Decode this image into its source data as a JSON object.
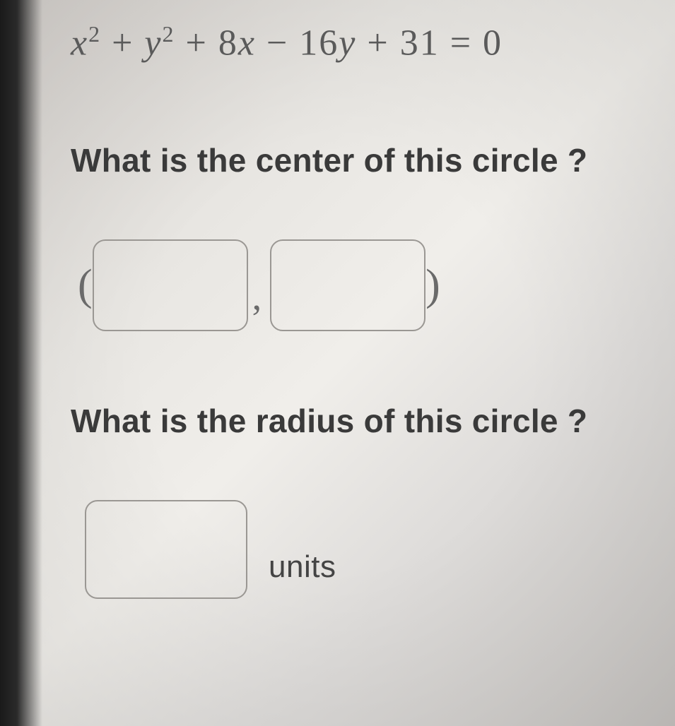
{
  "equation": {
    "latex_display": "x² + y² + 8x − 16y + 31 = 0",
    "terms": {
      "x_sq": "x",
      "y_sq": "y",
      "x_coef": "8",
      "y_coef": "16",
      "const": "31",
      "rhs": "0"
    }
  },
  "questions": {
    "center": "What is the center of this circle ?",
    "radius": "What is the radius of this circle ?"
  },
  "inputs": {
    "center_x": "",
    "center_y": "",
    "radius": "",
    "units_label": "units"
  },
  "style": {
    "text_color": "#3a3a3a",
    "equation_color": "#5a5a5a",
    "border_color": "#9a9793",
    "background": "#e8e6e2",
    "question_fontsize": 46,
    "equation_fontsize": 52,
    "input_width": 220,
    "input_height": 130,
    "input_border_radius": 18
  }
}
